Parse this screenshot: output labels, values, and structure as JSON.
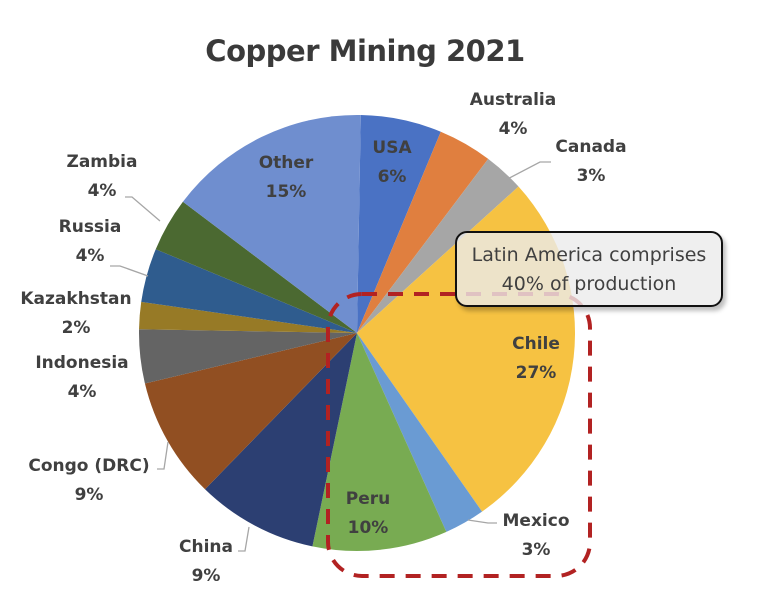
{
  "chart_data": {
    "type": "pie",
    "title": "Copper Mining 2021",
    "categories": [
      "USA",
      "Australia",
      "Canada",
      "Chile",
      "Mexico",
      "Peru",
      "China",
      "Congo (DRC)",
      "Indonesia",
      "Kazakhstan",
      "Russia",
      "Zambia",
      "Other"
    ],
    "values": [
      6,
      4,
      3,
      27,
      3,
      10,
      9,
      9,
      4,
      2,
      4,
      4,
      15
    ],
    "unit": "%",
    "colors": [
      "#4a72c4",
      "#e07f3f",
      "#a6a6a6",
      "#f6c242",
      "#6a9bd3",
      "#78ab52",
      "#2c3f72",
      "#914f22",
      "#646464",
      "#977a26",
      "#2f5c8e",
      "#4b6931",
      "#6f8ecf"
    ],
    "labels": [
      "USA 6%",
      "Australia 4%",
      "Canada 3%",
      "Chile 27%",
      "Mexico 3%",
      "Peru 10%",
      "China 9%",
      "Congo (DRC) 9%",
      "Indonesia 4%",
      "Kazakhstan 2%",
      "Russia 4%",
      "Zambia 4%",
      "Other 15%"
    ],
    "start_angle_deg": 1,
    "direction": "clockwise",
    "annotation": "Latin America comprises 40% of production",
    "highlight_group": [
      "Chile",
      "Mexico",
      "Peru"
    ],
    "legend": "none (data labels)"
  },
  "title": "Copper Mining 2021",
  "labels": {
    "usa": {
      "name": "USA",
      "pct": "6%"
    },
    "australia": {
      "name": "Australia",
      "pct": "4%"
    },
    "canada": {
      "name": "Canada",
      "pct": "3%"
    },
    "chile": {
      "name": "Chile",
      "pct": "27%"
    },
    "mexico": {
      "name": "Mexico",
      "pct": "3%"
    },
    "peru": {
      "name": "Peru",
      "pct": "10%"
    },
    "china": {
      "name": "China",
      "pct": "9%"
    },
    "congo": {
      "name": "Congo (DRC)",
      "pct": "9%"
    },
    "indonesia": {
      "name": "Indonesia",
      "pct": "4%"
    },
    "kazakhstan": {
      "name": "Kazakhstan",
      "pct": "2%"
    },
    "russia": {
      "name": "Russia",
      "pct": "4%"
    },
    "zambia": {
      "name": "Zambia",
      "pct": "4%"
    },
    "other": {
      "name": "Other",
      "pct": "15%"
    }
  },
  "callout": {
    "line1": "Latin America  comprises",
    "line2": "40% of production"
  },
  "highlight_color": "#b22222"
}
